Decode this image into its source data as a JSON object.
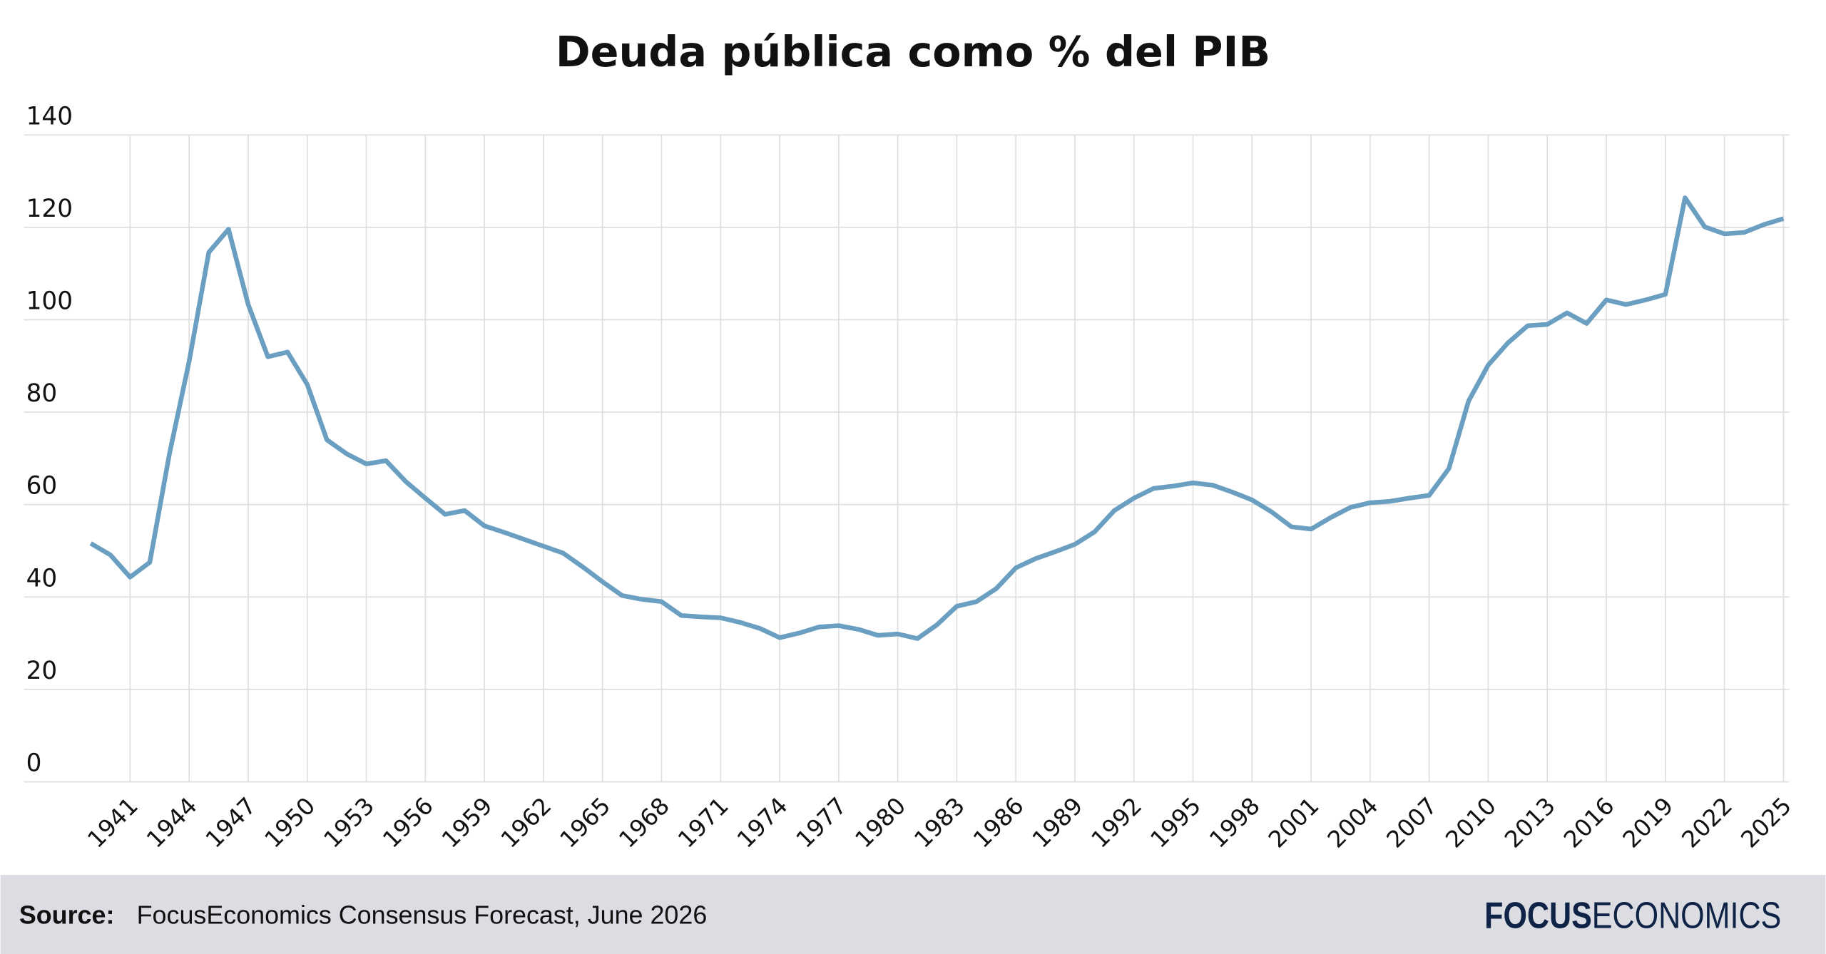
{
  "chart_data": {
    "type": "line",
    "title": "Deuda pública como % del PIB",
    "x": [
      1939,
      1940,
      1941,
      1942,
      1943,
      1944,
      1945,
      1946,
      1947,
      1948,
      1949,
      1950,
      1951,
      1952,
      1953,
      1954,
      1955,
      1956,
      1957,
      1958,
      1959,
      1960,
      1961,
      1962,
      1963,
      1964,
      1965,
      1966,
      1967,
      1968,
      1969,
      1970,
      1971,
      1972,
      1973,
      1974,
      1975,
      1976,
      1977,
      1978,
      1979,
      1980,
      1981,
      1982,
      1983,
      1984,
      1985,
      1986,
      1987,
      1988,
      1989,
      1990,
      1991,
      1992,
      1993,
      1994,
      1995,
      1996,
      1997,
      1998,
      1999,
      2000,
      2001,
      2002,
      2003,
      2004,
      2005,
      2006,
      2007,
      2008,
      2009,
      2010,
      2011,
      2012,
      2013,
      2014,
      2015,
      2016,
      2017,
      2018,
      2019,
      2020,
      2021,
      2022,
      2023,
      2024,
      2025
    ],
    "series": [
      {
        "color": "#6a9fc1",
        "values": [
          51.6,
          49.1,
          44.3,
          47.5,
          71,
          91,
          114.6,
          119.6,
          103.3,
          92,
          93,
          86,
          74,
          71,
          68.8,
          69.5,
          65,
          61.4,
          57.9,
          58.7,
          55.4,
          54,
          52.5,
          51,
          49.5,
          46.5,
          43.3,
          40.3,
          39.5,
          39,
          36,
          35.7,
          35.5,
          34.5,
          33.2,
          31.2,
          32.2,
          33.5,
          33.8,
          33,
          31.7,
          32,
          31,
          34,
          38,
          39,
          41.8,
          46.3,
          48.3,
          49.8,
          51.4,
          54.1,
          58.7,
          61.4,
          63.5,
          64,
          64.7,
          64.2,
          62.7,
          61,
          58.4,
          55.2,
          54.7,
          57.2,
          59.4,
          60.4,
          60.7,
          61.4,
          62,
          67.8,
          82.4,
          90.2,
          95,
          98.7,
          99,
          101.5,
          99.2,
          104.3,
          103.3,
          104.3,
          105.5,
          126.4,
          120.1,
          118.6,
          118.9,
          120.6,
          121.9
        ]
      }
    ],
    "xlim": [
      1935.6,
      2025.3
    ],
    "xticks": [
      1941,
      1944,
      1947,
      1950,
      1953,
      1956,
      1959,
      1962,
      1965,
      1968,
      1971,
      1974,
      1977,
      1980,
      1983,
      1986,
      1989,
      1992,
      1995,
      1998,
      2001,
      2004,
      2007,
      2010,
      2013,
      2016,
      2019,
      2022,
      2025
    ],
    "ylim": [
      0,
      140
    ],
    "yticks": [
      0,
      20,
      40,
      60,
      80,
      100,
      120,
      140
    ],
    "grid": true
  },
  "footer": {
    "source_label": "Source:",
    "source": "FocusEconomics Consensus Forecast, June 2026",
    "logo_bold": "FOCUS",
    "logo_light": "ECONOMICS"
  }
}
